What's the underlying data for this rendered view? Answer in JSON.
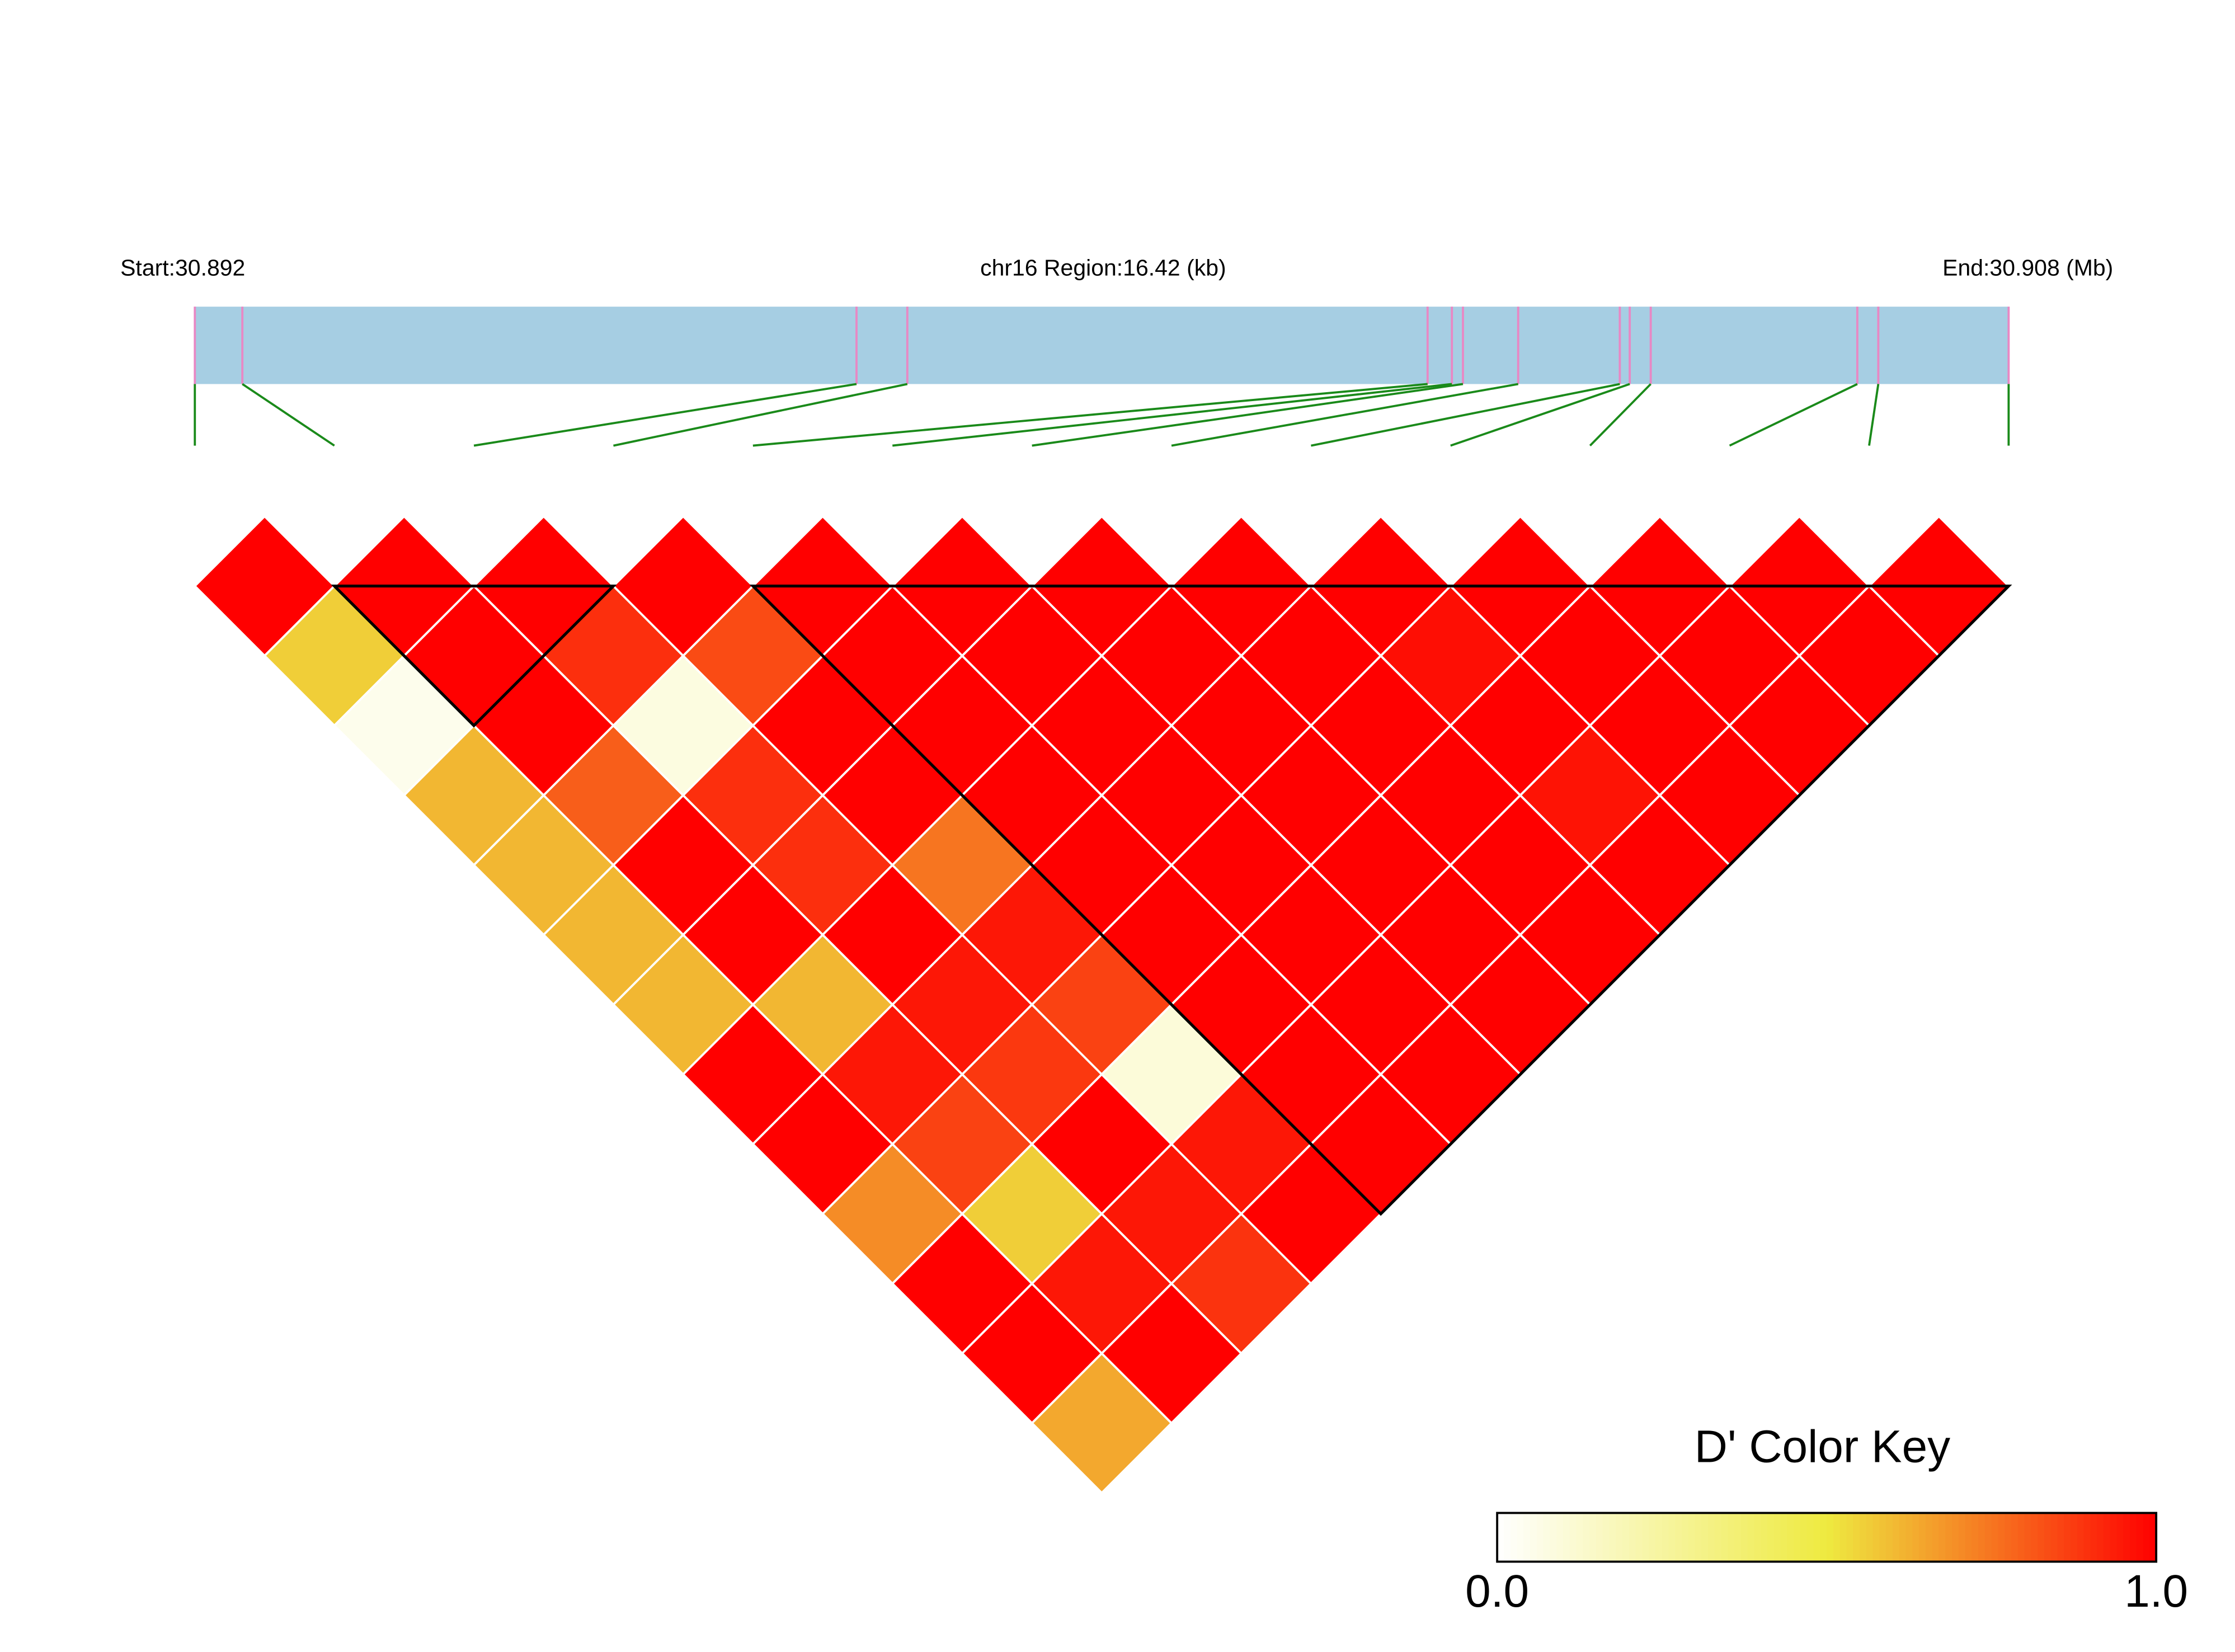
{
  "chart_data": {
    "type": "ld_heatmap",
    "start_label": "Start:30.892",
    "region_label": "chr16 Region:16.42 (kb)",
    "end_label": "End:30.908 (Mb)",
    "xlim": [
      0,
      16.42
    ],
    "snp_positions": [
      0,
      0.43,
      5.99,
      6.45,
      11.16,
      11.38,
      11.48,
      11.98,
      12.9,
      12.99,
      13.18,
      15.05,
      15.24,
      16.42
    ],
    "values": [
      [
        1,
        0.56,
        0.05,
        0.61,
        0.61,
        0.61,
        0.61,
        1,
        1,
        0.7,
        1,
        1,
        0.64
      ],
      [
        1,
        1,
        1,
        0.8,
        1,
        1,
        0.61,
        0.95,
        0.86,
        0.56,
        0.95,
        1
      ],
      [
        1,
        0.9,
        0.08,
        0.9,
        0.9,
        1,
        0.95,
        0.88,
        1,
        0.95,
        0.89
      ],
      [
        1,
        0.84,
        1,
        1,
        0.75,
        0.95,
        0.86,
        0.1,
        0.95,
        1
      ],
      [
        1,
        1,
        1,
        1,
        1,
        1,
        1,
        1,
        1
      ],
      [
        1,
        1,
        1,
        1,
        1,
        1,
        1,
        1
      ],
      [
        1,
        1,
        1,
        1,
        1,
        1,
        1
      ],
      [
        1,
        1,
        1,
        1,
        1,
        1
      ],
      [
        1,
        0.97,
        1,
        0.96,
        1
      ],
      [
        1,
        1,
        1,
        1
      ],
      [
        1,
        1,
        1
      ],
      [
        1,
        1
      ],
      [
        1
      ]
    ],
    "blocks": [
      [
        1,
        3
      ],
      [
        4,
        13
      ]
    ],
    "colorscale": [
      [
        0,
        "#ffffff"
      ],
      [
        0.5,
        "#eeea40"
      ],
      [
        1,
        "#ff0000"
      ]
    ],
    "region_color": "#a6cee3",
    "snp_line_color": "#e888c4",
    "link_color": "#1a8a1a",
    "color_key": {
      "title": "D' Color Key",
      "lim": [
        0,
        1
      ],
      "ticks": [
        {
          "value": 0,
          "label": "0.0"
        },
        {
          "value": 1,
          "label": "1.0"
        }
      ]
    }
  }
}
